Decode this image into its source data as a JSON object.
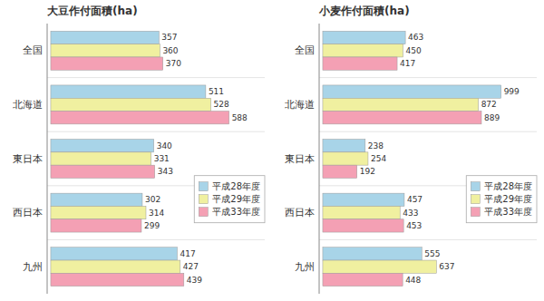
{
  "chart_data": [
    {
      "type": "bar",
      "orientation": "horizontal",
      "title": "大豆作付面積(ha)",
      "categories": [
        "全国",
        "北海道",
        "東日本",
        "西日本",
        "九州"
      ],
      "series": [
        {
          "name": "平成28年度",
          "color": "#A8D4E8",
          "values": [
            357,
            511,
            340,
            302,
            417
          ]
        },
        {
          "name": "平成29年度",
          "color": "#F0F0A0",
          "values": [
            360,
            528,
            331,
            314,
            427
          ]
        },
        {
          "name": "平成33年度",
          "color": "#F4A0B4",
          "values": [
            370,
            588,
            343,
            299,
            439
          ]
        }
      ],
      "xlim": [
        -11.76,
        705.6
      ],
      "data_labels": true,
      "tick_labels": "y",
      "grid": false,
      "legend": "right"
    },
    {
      "type": "bar",
      "orientation": "horizontal",
      "title": "小麦作付面積(ha)",
      "categories": [
        "全国",
        "北海道",
        "東日本",
        "西日本",
        "九州"
      ],
      "series": [
        {
          "name": "平成28年度",
          "color": "#A8D4E8",
          "values": [
            463,
            999,
            238,
            457,
            555
          ]
        },
        {
          "name": "平成29年度",
          "color": "#F0F0A0",
          "values": [
            450,
            872,
            254,
            433,
            637
          ]
        },
        {
          "name": "平成33年度",
          "color": "#F4A0B4",
          "values": [
            417,
            889,
            192,
            453,
            448
          ]
        }
      ],
      "xlim": [
        -19.98,
        1198.8
      ],
      "data_labels": true,
      "tick_labels": "y",
      "grid": false,
      "legend": "right"
    }
  ]
}
